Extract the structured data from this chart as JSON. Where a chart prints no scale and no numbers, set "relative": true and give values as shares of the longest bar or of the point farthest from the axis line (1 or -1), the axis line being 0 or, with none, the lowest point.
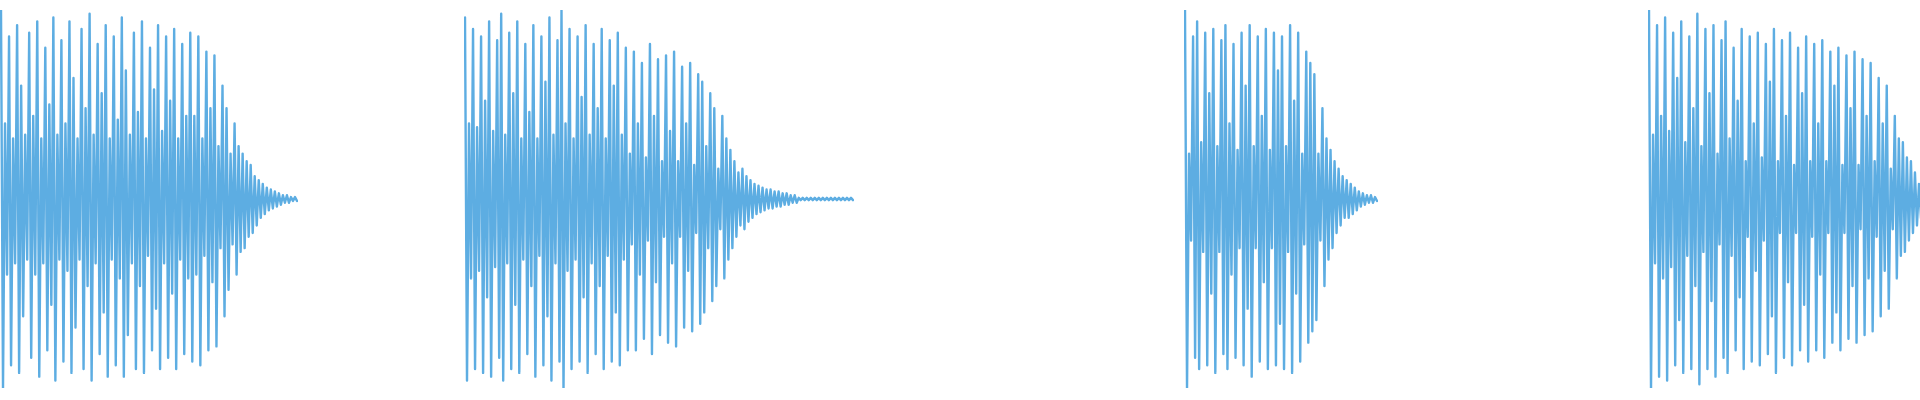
{
  "chart_data": [
    {
      "type": "line",
      "relative": true,
      "color": "#5dade2",
      "categories": [
        null,
        null,
        null,
        null,
        null,
        null,
        null,
        null,
        null,
        null,
        null,
        null,
        null,
        null,
        null,
        null,
        null,
        null,
        null,
        null,
        null,
        null,
        null,
        null,
        null,
        null,
        null,
        null,
        null,
        null,
        null,
        null,
        null,
        null,
        null,
        null,
        null,
        null,
        null,
        null,
        null,
        null,
        null,
        null,
        null,
        null,
        null,
        null,
        null,
        null,
        null,
        null,
        null,
        null,
        null,
        null,
        null,
        null,
        null,
        null,
        null,
        null,
        null,
        null,
        null,
        null,
        null,
        null,
        null,
        null,
        null,
        null,
        null,
        null,
        null,
        null,
        null,
        null,
        null,
        null,
        null,
        null,
        null,
        null,
        null,
        null,
        null,
        null,
        null,
        null,
        null,
        null,
        null,
        null,
        null,
        null,
        null,
        null,
        null,
        null,
        null,
        null,
        null,
        null,
        null,
        null,
        null,
        null,
        null,
        null,
        null,
        null,
        null,
        null,
        null,
        null,
        null,
        null,
        null,
        null,
        null,
        null,
        null,
        null,
        null,
        null,
        null,
        null,
        null,
        null,
        null,
        null,
        null,
        null,
        null,
        null,
        null,
        null,
        null,
        null,
        null,
        null,
        null,
        null,
        null,
        null,
        null,
        null
      ],
      "values": [
        1.0,
        0.0,
        0.7,
        0.3,
        0.93,
        0.06,
        0.66,
        0.33,
        0.96,
        0.04,
        0.8,
        0.19,
        0.67,
        0.34,
        0.94,
        0.08,
        0.72,
        0.3,
        0.97,
        0.03,
        0.66,
        0.33,
        0.9,
        0.1,
        0.75,
        0.22,
        0.98,
        0.02,
        0.67,
        0.34,
        0.92,
        0.07,
        0.7,
        0.31,
        0.97,
        0.04,
        0.82,
        0.16,
        0.66,
        0.34,
        0.95,
        0.05,
        0.74,
        0.27,
        0.99,
        0.02,
        0.67,
        0.33,
        0.91,
        0.09,
        0.78,
        0.2,
        0.96,
        0.03,
        0.66,
        0.34,
        0.93,
        0.06,
        0.71,
        0.29,
        0.98,
        0.03,
        0.84,
        0.14,
        0.67,
        0.33,
        0.94,
        0.05,
        0.73,
        0.27,
        0.97,
        0.04,
        0.66,
        0.35,
        0.9,
        0.1,
        0.79,
        0.21,
        0.96,
        0.05,
        0.68,
        0.33,
        0.93,
        0.08,
        0.76,
        0.25,
        0.95,
        0.05,
        0.66,
        0.34,
        0.91,
        0.09,
        0.72,
        0.29,
        0.94,
        0.07,
        0.72,
        0.3,
        0.93,
        0.06,
        0.66,
        0.35,
        0.89,
        0.1,
        0.74,
        0.28,
        0.88,
        0.11,
        0.64,
        0.37,
        0.8,
        0.19,
        0.74,
        0.26,
        0.62,
        0.38,
        0.7,
        0.3,
        0.64,
        0.36,
        0.62,
        0.37,
        0.6,
        0.4,
        0.59,
        0.41,
        0.56,
        0.43,
        0.55,
        0.45,
        0.54,
        0.46,
        0.53,
        0.47,
        0.525,
        0.475,
        0.52,
        0.48,
        0.515,
        0.485,
        0.51,
        0.49,
        0.51,
        0.49,
        0.505,
        0.495,
        0.505,
        0.495
      ]
    },
    {
      "type": "line",
      "relative": true,
      "color": "#5dade2",
      "categories": [
        null,
        null,
        null,
        null,
        null,
        null,
        null,
        null,
        null,
        null,
        null,
        null,
        null,
        null,
        null,
        null,
        null,
        null,
        null,
        null,
        null,
        null,
        null,
        null,
        null,
        null,
        null,
        null,
        null,
        null,
        null,
        null,
        null,
        null,
        null,
        null,
        null,
        null,
        null,
        null,
        null,
        null,
        null,
        null,
        null,
        null,
        null,
        null,
        null,
        null,
        null,
        null,
        null,
        null,
        null,
        null,
        null,
        null,
        null,
        null,
        null,
        null,
        null,
        null,
        null,
        null,
        null,
        null,
        null,
        null,
        null,
        null,
        null,
        null,
        null,
        null,
        null,
        null,
        null,
        null,
        null,
        null,
        null,
        null,
        null,
        null,
        null,
        null,
        null,
        null,
        null,
        null,
        null,
        null,
        null,
        null,
        null,
        null,
        null,
        null,
        null,
        null,
        null,
        null,
        null,
        null,
        null,
        null,
        null,
        null,
        null,
        null,
        null,
        null,
        null,
        null,
        null,
        null,
        null,
        null,
        null,
        null,
        null,
        null,
        null,
        null,
        null,
        null,
        null,
        null,
        null,
        null,
        null,
        null,
        null,
        null,
        null,
        null,
        null,
        null,
        null,
        null,
        null,
        null,
        null,
        null,
        null,
        null,
        null,
        null,
        null,
        null,
        null,
        null,
        null,
        null,
        null,
        null,
        null,
        null,
        null,
        null,
        null,
        null,
        null,
        null,
        null,
        null,
        null,
        null,
        null,
        null,
        null,
        null,
        null,
        null,
        null,
        null,
        null,
        null,
        null,
        null,
        null,
        null,
        null,
        null,
        null,
        null,
        null,
        null,
        null,
        null,
        null,
        null
      ],
      "values": [
        0.98,
        0.02,
        0.7,
        0.29,
        0.95,
        0.05,
        0.69,
        0.31,
        0.93,
        0.04,
        0.76,
        0.24,
        0.97,
        0.03,
        0.68,
        0.32,
        0.92,
        0.08,
        0.99,
        0.02,
        0.67,
        0.33,
        0.94,
        0.05,
        0.78,
        0.22,
        0.97,
        0.04,
        0.66,
        0.34,
        0.91,
        0.09,
        0.73,
        0.27,
        0.96,
        0.03,
        0.66,
        0.35,
        0.93,
        0.06,
        0.81,
        0.19,
        0.98,
        0.02,
        0.67,
        0.33,
        0.92,
        0.07,
        1.0,
        0.0,
        0.7,
        0.31,
        0.95,
        0.05,
        0.66,
        0.34,
        0.93,
        0.07,
        0.77,
        0.24,
        0.96,
        0.04,
        0.67,
        0.33,
        0.91,
        0.09,
        0.74,
        0.27,
        0.95,
        0.05,
        0.66,
        0.35,
        0.92,
        0.07,
        0.8,
        0.2,
        0.94,
        0.06,
        0.67,
        0.34,
        0.9,
        0.1,
        0.62,
        0.38,
        0.89,
        0.1,
        0.7,
        0.3,
        0.86,
        0.13,
        0.61,
        0.39,
        0.91,
        0.09,
        0.72,
        0.28,
        0.87,
        0.14,
        0.6,
        0.4,
        0.88,
        0.12,
        0.68,
        0.33,
        0.89,
        0.11,
        0.6,
        0.4,
        0.85,
        0.16,
        0.7,
        0.31,
        0.86,
        0.15,
        0.59,
        0.41,
        0.83,
        0.17,
        0.81,
        0.2,
        0.64,
        0.37,
        0.78,
        0.23,
        0.74,
        0.27,
        0.58,
        0.42,
        0.72,
        0.29,
        0.66,
        0.34,
        0.63,
        0.37,
        0.6,
        0.4,
        0.57,
        0.43,
        0.58,
        0.42,
        0.56,
        0.44,
        0.55,
        0.45,
        0.54,
        0.46,
        0.535,
        0.465,
        0.53,
        0.47,
        0.525,
        0.475,
        0.525,
        0.475,
        0.52,
        0.48,
        0.52,
        0.48,
        0.515,
        0.485,
        0.515,
        0.485,
        0.51,
        0.49,
        0.51,
        0.49,
        0.503,
        0.497,
        0.503,
        0.497,
        0.503,
        0.497,
        0.503,
        0.497,
        0.503,
        0.497,
        0.503,
        0.497,
        0.503,
        0.497,
        0.503,
        0.497,
        0.503,
        0.497,
        0.503,
        0.497,
        0.503,
        0.497,
        0.503,
        0.497,
        0.503,
        0.497,
        0.503,
        0.497
      ]
    },
    {
      "type": "line",
      "relative": true,
      "color": "#5dade2",
      "categories": [
        null,
        null,
        null,
        null,
        null,
        null,
        null,
        null,
        null,
        null,
        null,
        null,
        null,
        null,
        null,
        null,
        null,
        null,
        null,
        null,
        null,
        null,
        null,
        null,
        null,
        null,
        null,
        null,
        null,
        null,
        null,
        null,
        null,
        null,
        null,
        null,
        null,
        null,
        null,
        null,
        null,
        null,
        null,
        null,
        null,
        null,
        null,
        null,
        null,
        null,
        null,
        null,
        null,
        null,
        null,
        null,
        null,
        null,
        null,
        null,
        null,
        null,
        null,
        null,
        null,
        null,
        null,
        null,
        null,
        null,
        null,
        null,
        null,
        null,
        null,
        null,
        null,
        null,
        null,
        null,
        null,
        null,
        null,
        null,
        null,
        null,
        null,
        null,
        null,
        null,
        null,
        null,
        null,
        null,
        null,
        null
      ],
      "values": [
        1.0,
        0.0,
        0.62,
        0.39,
        0.93,
        0.08,
        0.97,
        0.05,
        0.65,
        0.36,
        0.94,
        0.06,
        0.78,
        0.25,
        0.95,
        0.04,
        0.64,
        0.36,
        0.92,
        0.09,
        0.96,
        0.05,
        0.7,
        0.3,
        0.91,
        0.08,
        0.63,
        0.37,
        0.94,
        0.06,
        0.8,
        0.21,
        0.96,
        0.03,
        0.64,
        0.37,
        0.93,
        0.07,
        0.72,
        0.28,
        0.95,
        0.05,
        0.63,
        0.37,
        0.94,
        0.06,
        0.84,
        0.17,
        0.93,
        0.05,
        0.64,
        0.36,
        0.96,
        0.04,
        0.76,
        0.25,
        0.94,
        0.07,
        0.62,
        0.38,
        0.89,
        0.12,
        0.86,
        0.15,
        0.83,
        0.18,
        0.62,
        0.39,
        0.74,
        0.27,
        0.66,
        0.34,
        0.63,
        0.37,
        0.6,
        0.41,
        0.58,
        0.43,
        0.56,
        0.45,
        0.55,
        0.45,
        0.54,
        0.46,
        0.53,
        0.47,
        0.52,
        0.48,
        0.515,
        0.485,
        0.51,
        0.49,
        0.51,
        0.49,
        0.505,
        0.495
      ]
    },
    {
      "type": "line",
      "relative": true,
      "color": "#5dade2",
      "categories": [
        null,
        null,
        null,
        null,
        null,
        null,
        null,
        null,
        null,
        null,
        null,
        null,
        null,
        null,
        null,
        null,
        null,
        null,
        null,
        null,
        null,
        null,
        null,
        null,
        null,
        null,
        null,
        null,
        null,
        null,
        null,
        null,
        null,
        null,
        null,
        null,
        null,
        null,
        null,
        null,
        null,
        null,
        null,
        null,
        null,
        null,
        null,
        null,
        null,
        null,
        null,
        null,
        null,
        null,
        null,
        null,
        null,
        null,
        null,
        null,
        null,
        null,
        null,
        null,
        null,
        null,
        null,
        null,
        null,
        null,
        null,
        null,
        null,
        null,
        null,
        null,
        null,
        null,
        null,
        null,
        null,
        null,
        null,
        null,
        null,
        null,
        null,
        null,
        null,
        null,
        null,
        null,
        null,
        null,
        null,
        null,
        null,
        null,
        null,
        null,
        null,
        null,
        null,
        null,
        null,
        null,
        null,
        null,
        null,
        null,
        null,
        null,
        null,
        null,
        null,
        null,
        null,
        null,
        null,
        null,
        null,
        null,
        null,
        null,
        null,
        null,
        null,
        null,
        null,
        null,
        null,
        null,
        null,
        null,
        null,
        null
      ],
      "values": [
        1.0,
        0.0,
        0.67,
        0.33,
        0.96,
        0.03,
        0.72,
        0.29,
        0.98,
        0.02,
        0.68,
        0.32,
        0.94,
        0.06,
        0.82,
        0.18,
        0.97,
        0.04,
        0.65,
        0.35,
        0.93,
        0.05,
        0.74,
        0.27,
        0.99,
        0.01,
        0.64,
        0.36,
        0.95,
        0.05,
        0.78,
        0.23,
        0.96,
        0.03,
        0.62,
        0.38,
        0.92,
        0.08,
        0.97,
        0.04,
        0.66,
        0.35,
        0.9,
        0.1,
        0.76,
        0.24,
        0.95,
        0.05,
        0.6,
        0.4,
        0.93,
        0.07,
        0.7,
        0.31,
        0.94,
        0.06,
        0.61,
        0.39,
        0.91,
        0.09,
        0.81,
        0.19,
        0.95,
        0.04,
        0.6,
        0.41,
        0.92,
        0.08,
        0.72,
        0.28,
        0.94,
        0.06,
        0.59,
        0.41,
        0.9,
        0.1,
        0.78,
        0.22,
        0.93,
        0.07,
        0.6,
        0.4,
        0.91,
        0.1,
        0.7,
        0.3,
        0.92,
        0.08,
        0.6,
        0.41,
        0.89,
        0.12,
        0.8,
        0.2,
        0.9,
        0.1,
        0.59,
        0.41,
        0.88,
        0.13,
        0.74,
        0.27,
        0.89,
        0.12,
        0.59,
        0.42,
        0.87,
        0.14,
        0.72,
        0.29,
        0.86,
        0.15,
        0.6,
        0.4,
        0.82,
        0.19,
        0.7,
        0.31,
        0.8,
        0.21,
        0.58,
        0.42,
        0.72,
        0.29,
        0.66,
        0.35,
        0.65,
        0.36,
        0.61,
        0.39,
        0.6,
        0.41,
        0.57,
        0.43,
        0.54,
        0.45
      ]
    }
  ]
}
